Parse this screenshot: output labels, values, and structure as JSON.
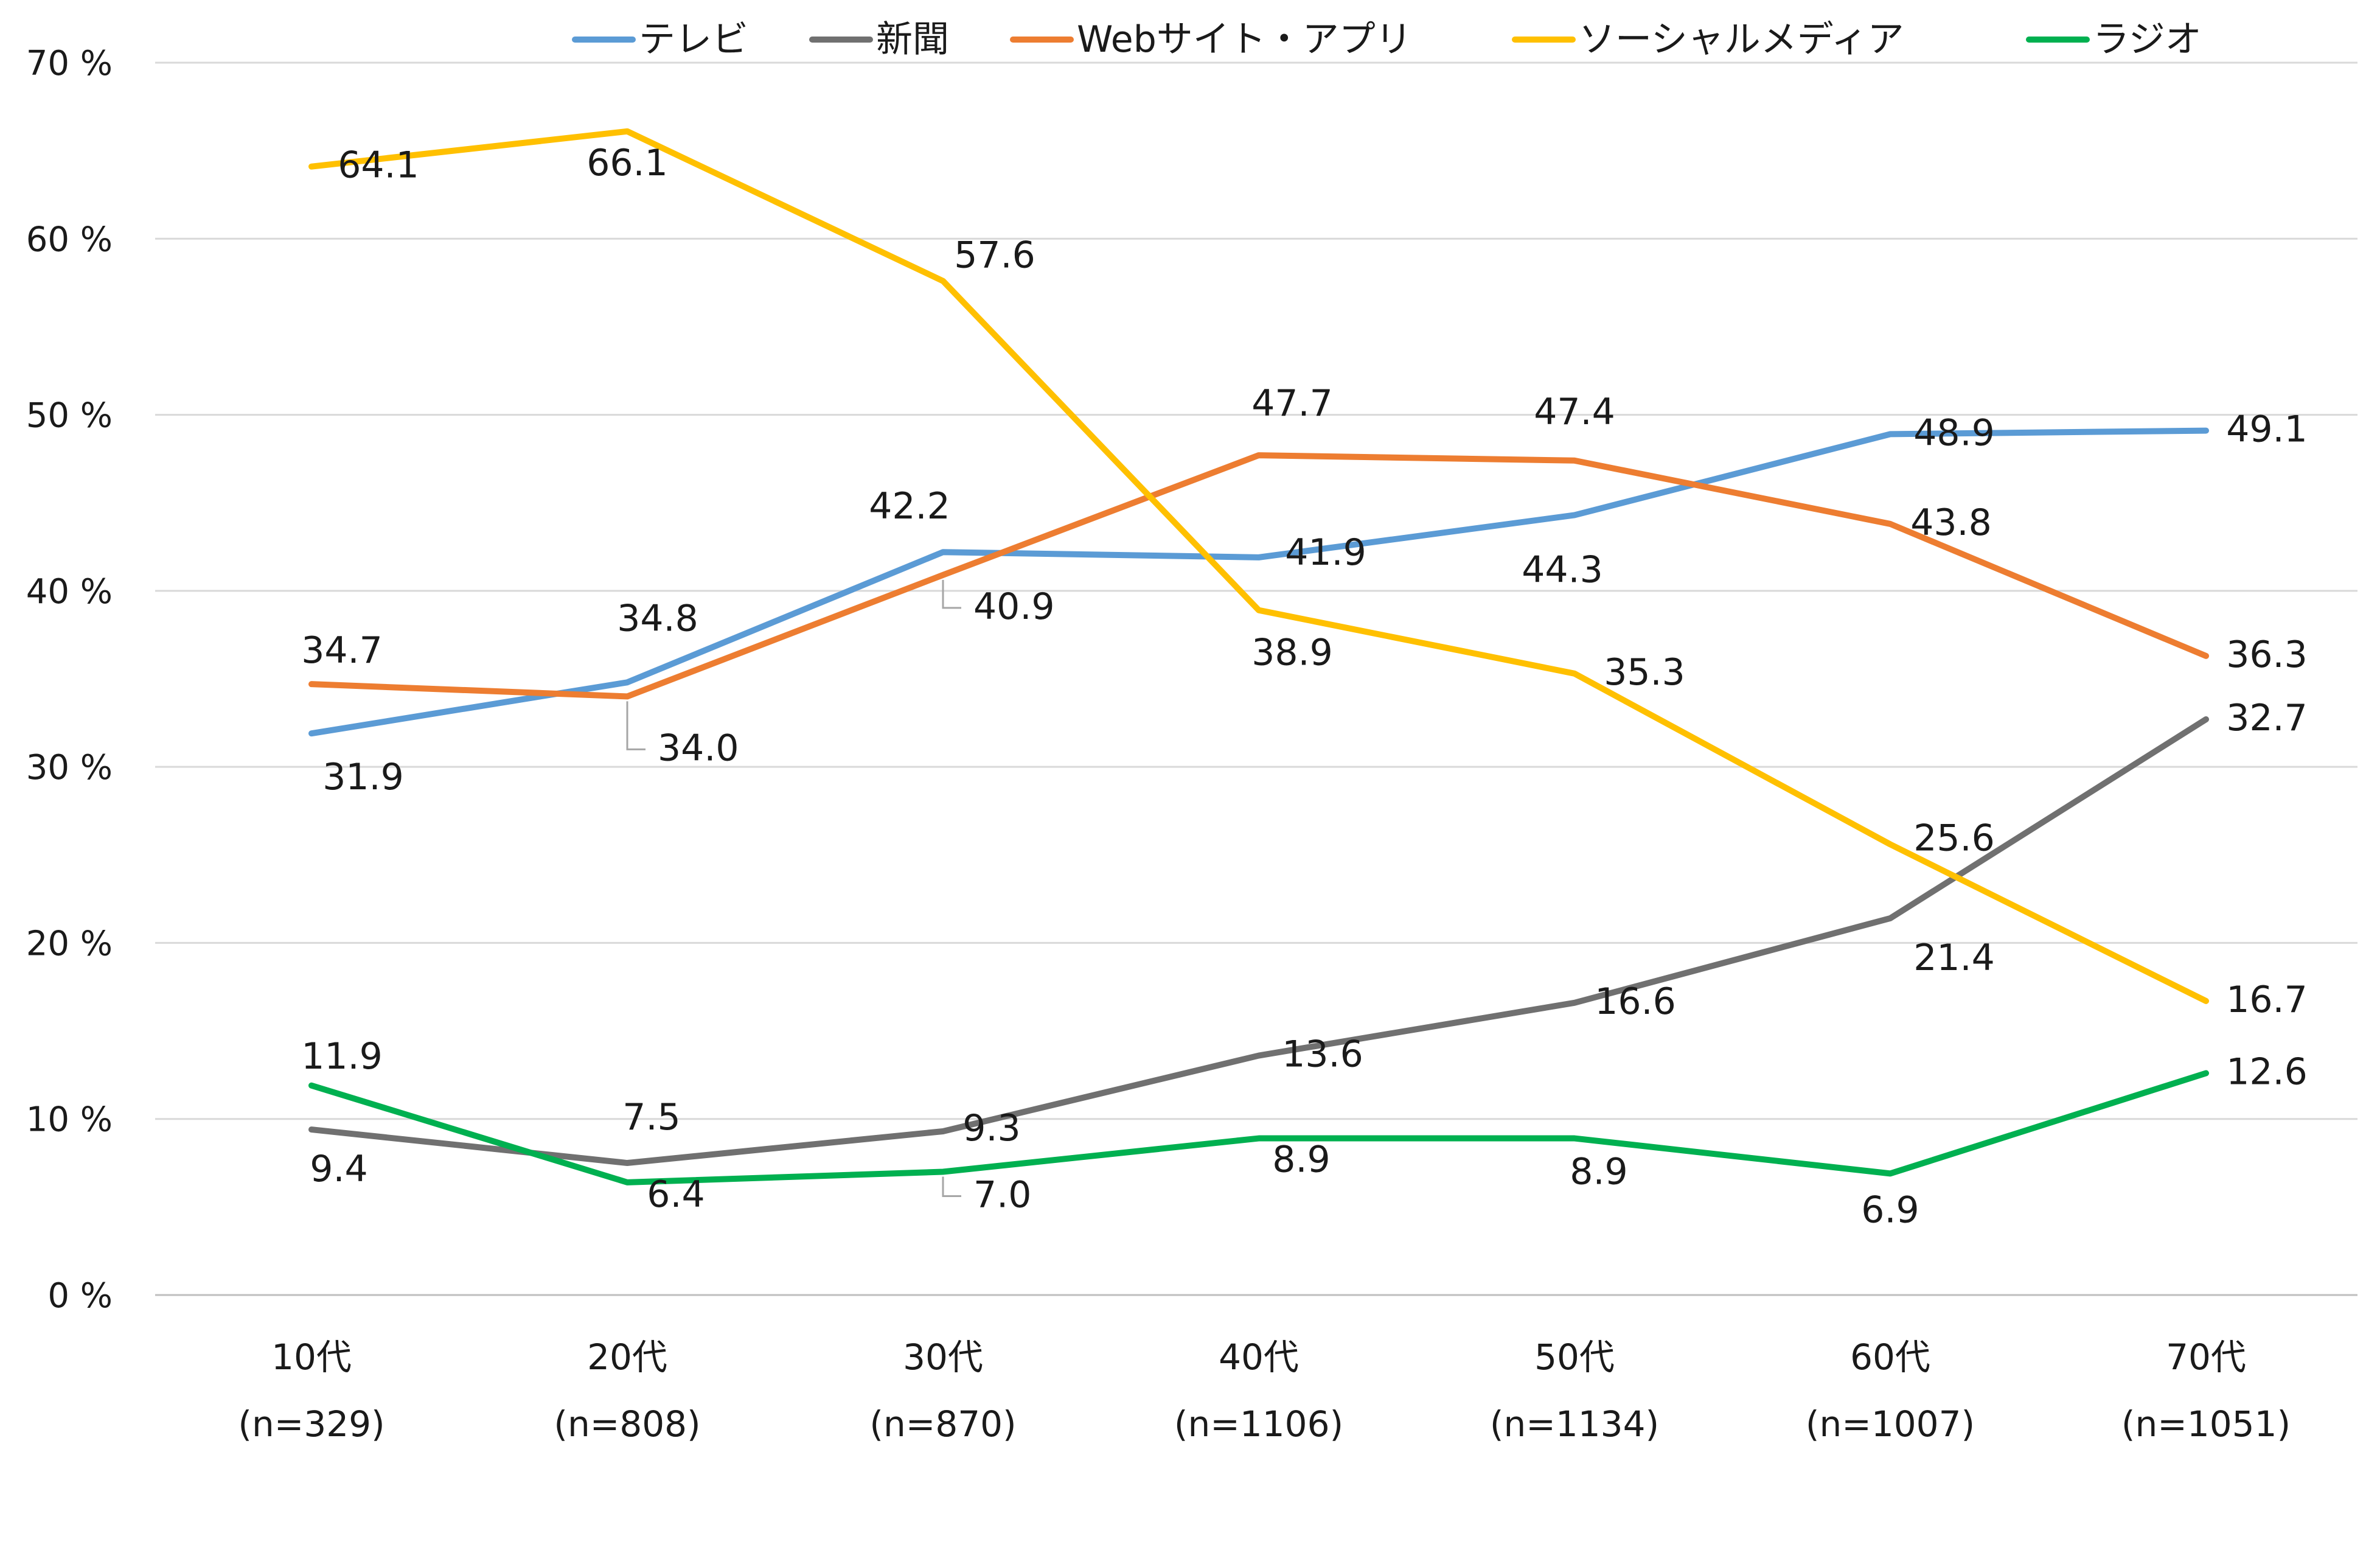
{
  "chart_data": {
    "type": "line",
    "title": "",
    "xlabel": "",
    "ylabel": "",
    "ylim": [
      0,
      70
    ],
    "y_ticks": [
      0,
      10,
      20,
      30,
      40,
      50,
      60,
      70
    ],
    "y_tick_suffix": " %",
    "grid": true,
    "legend_position": "top",
    "categories": [
      "10代",
      "20代",
      "30代",
      "40代",
      "50代",
      "60代",
      "70代"
    ],
    "sample_sizes": [
      "(n=329)",
      "(n=808)",
      "(n=870)",
      "(n=1106)",
      "(n=1134)",
      "(n=1007)",
      "(n=1051)"
    ],
    "series": [
      {
        "name": "テレビ",
        "color": "#5B9BD5",
        "values": [
          31.9,
          34.8,
          42.2,
          41.9,
          44.3,
          48.9,
          49.1
        ]
      },
      {
        "name": "新聞",
        "color": "#707070",
        "values": [
          9.4,
          7.5,
          9.3,
          13.6,
          16.6,
          21.4,
          32.7
        ]
      },
      {
        "name": "Webサイト・アプリ",
        "color": "#ED7D31",
        "values": [
          34.7,
          34.0,
          40.9,
          47.7,
          47.4,
          43.8,
          36.3
        ]
      },
      {
        "name": "ソーシャルメディア",
        "color": "#FFC000",
        "values": [
          64.1,
          66.1,
          57.6,
          38.9,
          35.3,
          25.6,
          16.7
        ]
      },
      {
        "name": "ラジオ",
        "color": "#00B050",
        "values": [
          11.9,
          6.4,
          7.0,
          8.9,
          8.9,
          6.9,
          12.6
        ]
      }
    ]
  }
}
